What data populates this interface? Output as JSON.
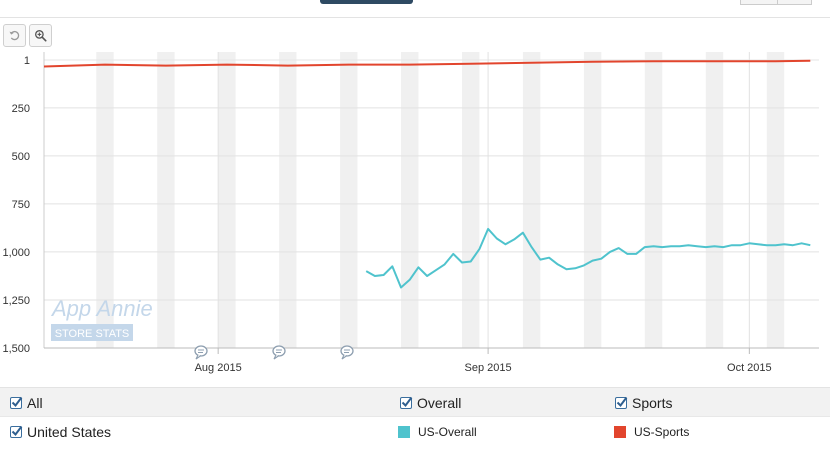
{
  "toolbar": {
    "reset_icon": "reset-zoom-icon",
    "zoom_icon": "zoom-in-icon"
  },
  "chart_data": {
    "type": "line",
    "title": "",
    "xlabel": "",
    "ylabel": "",
    "ylim": [
      1,
      1500
    ],
    "y_reversed": true,
    "y_ticks": [
      1,
      250,
      500,
      750,
      1000,
      1250,
      1500
    ],
    "y_tick_labels": [
      "1",
      "250",
      "500",
      "750",
      "1,000",
      "1,250",
      "1,500"
    ],
    "x_tick_labels": [
      "Aug 2015",
      "Sep 2015",
      "Oct 2015"
    ],
    "x_ticks": [
      "2015-08-01",
      "2015-09-01",
      "2015-10-01"
    ],
    "xlim": [
      "2015-07-12",
      "2015-10-09"
    ],
    "weekend_shading": true,
    "grid": true,
    "watermark": {
      "line1": "App Annie",
      "line2": "STORE STATS"
    },
    "annotation_icon": "comment-bubble-icon",
    "annotation_count": 3,
    "series": [
      {
        "name": "US-Overall",
        "color": "#4fc3cd",
        "x": [
          "2015-08-18",
          "2015-08-19",
          "2015-08-20",
          "2015-08-21",
          "2015-08-22",
          "2015-08-23",
          "2015-08-24",
          "2015-08-25",
          "2015-08-26",
          "2015-08-27",
          "2015-08-28",
          "2015-08-29",
          "2015-08-30",
          "2015-08-31",
          "2015-09-01",
          "2015-09-02",
          "2015-09-03",
          "2015-09-04",
          "2015-09-05",
          "2015-09-06",
          "2015-09-07",
          "2015-09-08",
          "2015-09-09",
          "2015-09-10",
          "2015-09-11",
          "2015-09-12",
          "2015-09-13",
          "2015-09-14",
          "2015-09-15",
          "2015-09-16",
          "2015-09-17",
          "2015-09-18",
          "2015-09-19",
          "2015-09-20",
          "2015-09-21",
          "2015-09-22",
          "2015-09-23",
          "2015-09-24",
          "2015-09-25",
          "2015-09-26",
          "2015-09-27",
          "2015-09-28",
          "2015-09-29",
          "2015-09-30",
          "2015-10-01",
          "2015-10-02",
          "2015-10-03",
          "2015-10-04",
          "2015-10-05",
          "2015-10-06",
          "2015-10-07",
          "2015-10-08"
        ],
        "values": [
          1100,
          1125,
          1120,
          1075,
          1185,
          1145,
          1080,
          1125,
          1095,
          1065,
          1010,
          1055,
          1050,
          985,
          880,
          930,
          960,
          935,
          900,
          975,
          1040,
          1030,
          1065,
          1090,
          1085,
          1070,
          1045,
          1035,
          1000,
          980,
          1010,
          1010,
          975,
          970,
          975,
          970,
          970,
          965,
          970,
          975,
          970,
          975,
          965,
          965,
          955,
          960,
          965,
          965,
          960,
          965,
          955,
          965
        ]
      },
      {
        "name": "US-Sports",
        "color": "#e2452d",
        "x": [
          "2015-07-12",
          "2015-07-19",
          "2015-07-26",
          "2015-08-02",
          "2015-08-09",
          "2015-08-16",
          "2015-08-23",
          "2015-08-30",
          "2015-09-06",
          "2015-09-13",
          "2015-09-20",
          "2015-09-27",
          "2015-10-04",
          "2015-10-08"
        ],
        "values": [
          35,
          25,
          30,
          25,
          30,
          25,
          25,
          20,
          15,
          10,
          8,
          8,
          7,
          5
        ]
      }
    ]
  },
  "legend": {
    "row1": {
      "all": "All",
      "overall": "Overall",
      "sports": "Sports"
    },
    "row2": {
      "country": "United States",
      "series1": "US-Overall",
      "series2": "US-Sports"
    }
  }
}
